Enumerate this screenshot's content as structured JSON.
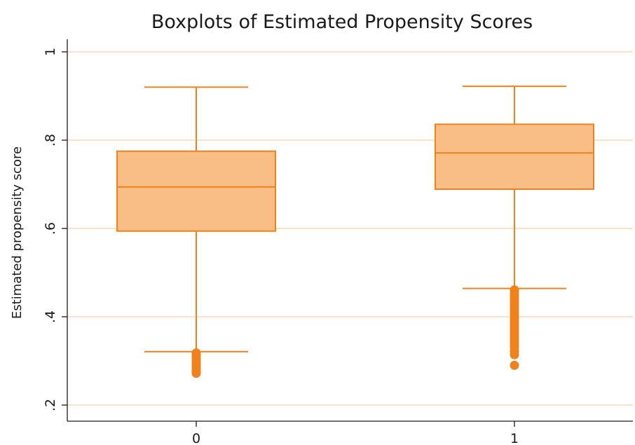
{
  "chart_data": {
    "type": "boxplot",
    "title": "Boxplots of Estimated Propensity Scores",
    "xlabel": "",
    "ylabel": "Estimated propensity score",
    "ylim": [
      0.18,
      1.04
    ],
    "yticks": [
      {
        "value": 0.2,
        "label": ".2"
      },
      {
        "value": 0.4,
        "label": ".4"
      },
      {
        "value": 0.6,
        "label": ".6"
      },
      {
        "value": 0.8,
        "label": ".8"
      },
      {
        "value": 1.0,
        "label": "1"
      }
    ],
    "grid": true,
    "categories": [
      "0",
      "1"
    ],
    "groups": [
      {
        "category": "0",
        "whisker_low": 0.321,
        "q1": 0.594,
        "median": 0.694,
        "q3": 0.775,
        "whisker_high": 0.92,
        "outliers": [
          0.318,
          0.313,
          0.308,
          0.303,
          0.298,
          0.292,
          0.287,
          0.282,
          0.278,
          0.274,
          0.272
        ]
      },
      {
        "category": "1",
        "whisker_low": 0.464,
        "q1": 0.689,
        "median": 0.771,
        "q3": 0.836,
        "whisker_high": 0.922,
        "outliers": [
          0.461,
          0.456,
          0.45,
          0.444,
          0.438,
          0.432,
          0.426,
          0.42,
          0.414,
          0.408,
          0.402,
          0.396,
          0.39,
          0.384,
          0.378,
          0.372,
          0.366,
          0.36,
          0.354,
          0.348,
          0.342,
          0.336,
          0.33,
          0.322,
          0.314,
          0.29
        ]
      }
    ],
    "colors": {
      "box_fill": "#f9bd86",
      "box_stroke": "#f0821e",
      "outlier": "#f0821e",
      "grid": "#fbe3c8",
      "axis": "#1a1a1a"
    }
  }
}
